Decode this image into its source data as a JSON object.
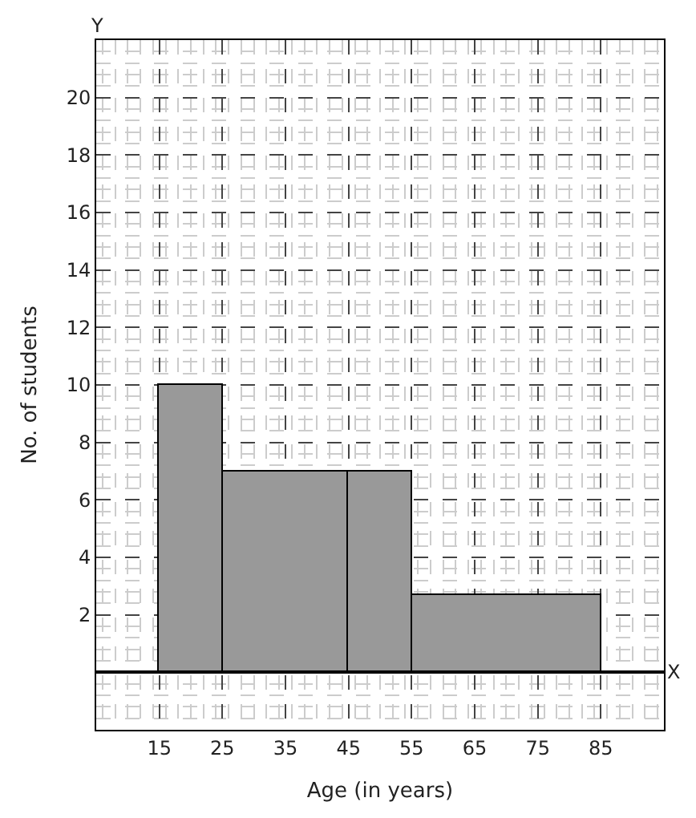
{
  "chart_data": {
    "type": "histogram",
    "xlabel": "Age (in years)",
    "ylabel": "No. of students",
    "bins": [
      15,
      25,
      45,
      55,
      85
    ],
    "values": [
      10,
      7,
      7,
      2.67
    ],
    "color": "#999999",
    "xlim": [
      5,
      95
    ],
    "xticks": [
      15,
      25,
      35,
      45,
      55,
      65,
      75,
      85
    ],
    "ylim": [
      -2,
      22
    ],
    "yticks": [
      2,
      4,
      6,
      8,
      10,
      12,
      14,
      16,
      18,
      20
    ],
    "annotations": [
      "X",
      "Y"
    ],
    "grid": true
  }
}
